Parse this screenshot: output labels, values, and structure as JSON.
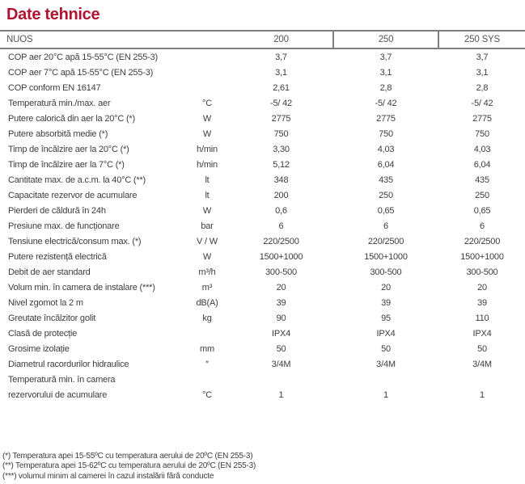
{
  "title": "Date tehnice",
  "table": {
    "product_label": "NUOS",
    "columns": [
      "200",
      "250",
      "250 SYS"
    ],
    "rows": [
      {
        "label": "COP aer 20°C apă 15-55°C (EN 255-3)",
        "unit": "",
        "values": [
          "3,7",
          "3,7",
          "3,7"
        ]
      },
      {
        "label": "COP aer 7°C apă 15-55°C (EN 255-3)",
        "unit": "",
        "values": [
          "3,1",
          "3,1",
          "3,1"
        ]
      },
      {
        "label": "COP conform EN 16147",
        "unit": "",
        "values": [
          "2,61",
          "2,8",
          "2,8"
        ]
      },
      {
        "label": "Temperatură min./max. aer",
        "unit": "°C",
        "values": [
          "-5/ 42",
          "-5/ 42",
          "-5/ 42"
        ]
      },
      {
        "label": "Putere calorică din aer la 20°C (*)",
        "unit": "W",
        "values": [
          "2775",
          "2775",
          "2775"
        ]
      },
      {
        "label": "Putere absorbită medie (*)",
        "unit": "W",
        "values": [
          "750",
          "750",
          "750"
        ]
      },
      {
        "label": "Timp de încălzire aer la 20°C (*)",
        "unit": "h/min",
        "values": [
          "3,30",
          "4,03",
          "4,03"
        ]
      },
      {
        "label": "Timp de încălzire aer la 7°C (*)",
        "unit": "h/min",
        "values": [
          "5,12",
          "6,04",
          "6,04"
        ]
      },
      {
        "label": "Cantitate max. de a.c.m. la 40°C (**)",
        "unit": "lt",
        "values": [
          "348",
          "435",
          "435"
        ]
      },
      {
        "label": "Capacitate rezervor de acumulare",
        "unit": "lt",
        "values": [
          "200",
          "250",
          "250"
        ]
      },
      {
        "label": "Pierderi de căldură în 24h",
        "unit": "W",
        "values": [
          "0,6",
          "0,65",
          "0,65"
        ]
      },
      {
        "label": "Presiune max. de funcționare",
        "unit": "bar",
        "values": [
          "6",
          "6",
          "6"
        ]
      },
      {
        "label": "Tensiune electrică/consum max. (*)",
        "unit": "V / W",
        "values": [
          "220/2500",
          "220/2500",
          "220/2500"
        ]
      },
      {
        "label": "Putere rezistență electrică",
        "unit": "W",
        "values": [
          "1500+1000",
          "1500+1000",
          "1500+1000"
        ]
      },
      {
        "label": "Debit de aer standard",
        "unit": "m³/h",
        "values": [
          "300-500",
          "300-500",
          "300-500"
        ]
      },
      {
        "label": "Volum min. în camera de instalare (***)",
        "unit": "m³",
        "values": [
          "20",
          "20",
          "20"
        ]
      },
      {
        "label": "Nivel zgomot la 2 m",
        "unit": "dB(A)",
        "values": [
          "39",
          "39",
          "39"
        ]
      },
      {
        "label": "Greutate încălzitor golit",
        "unit": "kg",
        "values": [
          "90",
          "95",
          "110"
        ]
      },
      {
        "label": "Clasă de protecție",
        "unit": "",
        "values": [
          "IPX4",
          "IPX4",
          "IPX4"
        ]
      },
      {
        "label": "Grosime izolație",
        "unit": "mm",
        "values": [
          "50",
          "50",
          "50"
        ]
      },
      {
        "label": "Diametrul racordurilor hidraulice",
        "unit": "″",
        "values": [
          "3/4M",
          "3/4M",
          "3/4M"
        ]
      },
      {
        "label": "Temperatură min. în camera",
        "label_line2": "rezervorului de acumulare",
        "unit": "°C",
        "values": [
          "1",
          "1",
          "1"
        ]
      }
    ]
  },
  "footnotes": [
    "(*) Temperatura apei 15-55ºC cu temperatura aerului de 20ºC (EN 255-3)",
    "(**) Temperatura apei 15-62ºC cu temperatura aerului de 20ºC (EN 255-3)",
    "(***) volumul minim al camerei în cazul instalării fără conducte"
  ]
}
